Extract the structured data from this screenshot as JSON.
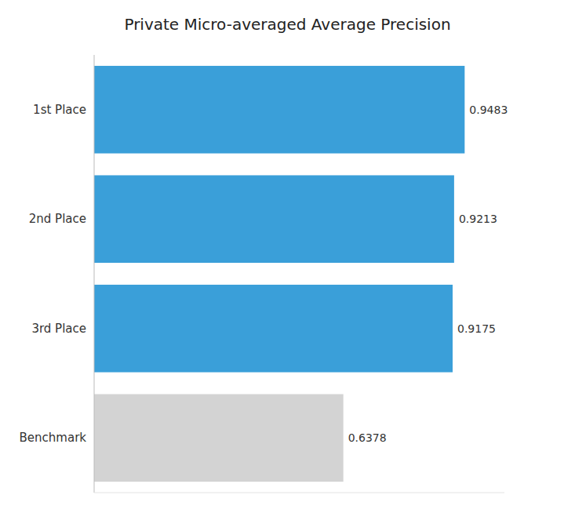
{
  "chart_data": {
    "type": "bar",
    "orientation": "horizontal",
    "title": "Private Micro-averaged Average Precision",
    "categories": [
      "1st Place",
      "2nd Place",
      "3rd Place",
      "Benchmark"
    ],
    "values": [
      0.9483,
      0.9213,
      0.9175,
      0.6378
    ],
    "colors": [
      "#3a9fd9",
      "#3a9fd9",
      "#3a9fd9",
      "#d3d3d3"
    ],
    "xlim": [
      0,
      1.05
    ],
    "grid": false,
    "data_labels": true,
    "tick_labels": "y"
  }
}
